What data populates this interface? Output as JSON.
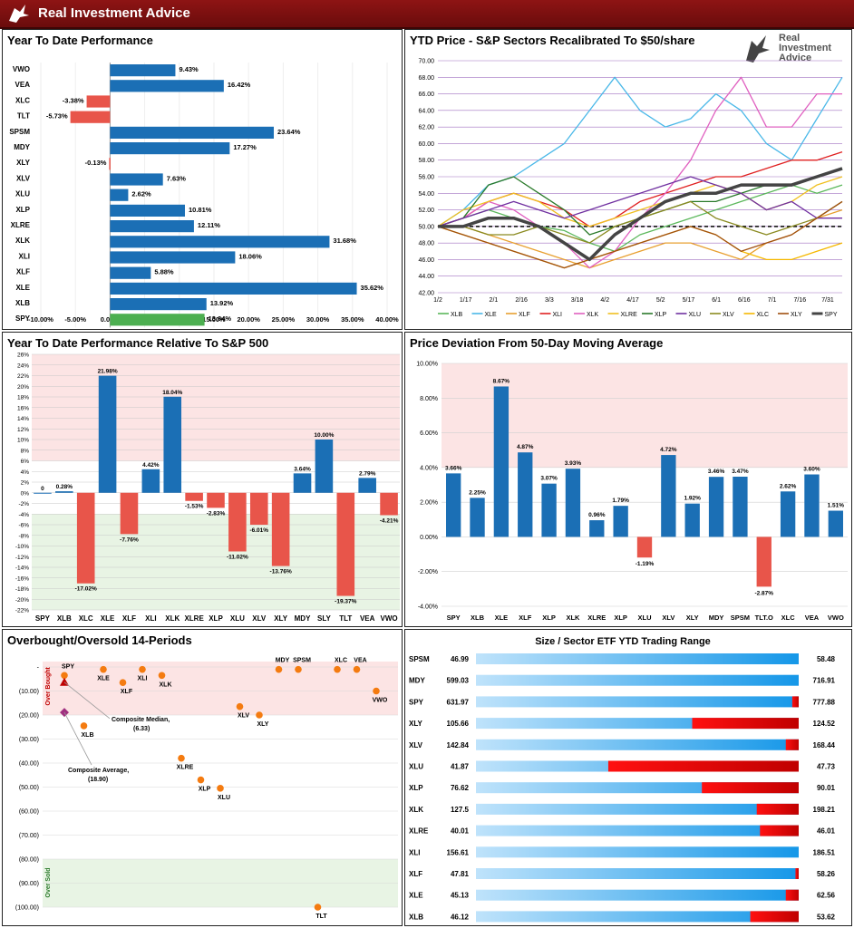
{
  "header": {
    "brand": "Real Investment Advice"
  },
  "panels": {
    "ytd": {
      "title": "Year To Date Performance"
    },
    "sectors": {
      "title": "YTD Price - S&P Sectors Recalibrated To $50/share",
      "logo_line1": "Real",
      "logo_line2": "Investment",
      "logo_line3": "Advice"
    },
    "relative": {
      "title": "Year To Date Performance Relative To S&P 500"
    },
    "deviation": {
      "title": "Price Deviation From 50-Day Moving Average"
    },
    "overbought": {
      "title": "Overbought/Oversold 14-Periods"
    },
    "range": {
      "title": "Size / Sector ETF YTD Trading Range"
    }
  },
  "colors": {
    "blue": "#1b6fb5",
    "red": "#e8554a",
    "green": "#4caf50",
    "pinkband": "#fce4e4",
    "greenband": "#e8f4e4",
    "dark_red": "#e00000",
    "light_blue": "#2da6ee"
  },
  "chart_data": [
    {
      "type": "bar",
      "orientation": "horizontal",
      "title": "Year To Date Performance",
      "categories": [
        "VWO",
        "VEA",
        "XLC",
        "TLT",
        "SPSM",
        "MDY",
        "XLY",
        "XLV",
        "XLU",
        "XLP",
        "XLRE",
        "XLK",
        "XLI",
        "XLF",
        "XLE",
        "XLB",
        "SPY"
      ],
      "values": [
        9.43,
        16.42,
        -3.38,
        -5.73,
        23.64,
        17.27,
        -0.13,
        7.63,
        2.62,
        10.81,
        12.11,
        31.68,
        18.06,
        5.88,
        35.62,
        13.92,
        13.64
      ],
      "labels": [
        "9.43%",
        "16.42%",
        "-3.38%",
        "-5.73%",
        "23.64%",
        "17.27%",
        "-0.13%",
        "7.63%",
        "2.62%",
        "10.81%",
        "12.11%",
        "31.68%",
        "18.06%",
        "5.88%",
        "35.62%",
        "13.92%",
        "13.64%"
      ],
      "xlim": [
        -10,
        40
      ],
      "xticks": [
        "-10.00%",
        "-5.00%",
        "0.00%",
        "5.00%",
        "10.00%",
        "15.00%",
        "20.00%",
        "25.00%",
        "30.00%",
        "35.00%",
        "40.00%"
      ]
    },
    {
      "type": "line",
      "title": "YTD Price - S&P Sectors Recalibrated To $50/share",
      "xticks": [
        "1/2",
        "1/17",
        "2/1",
        "2/16",
        "3/3",
        "3/18",
        "4/2",
        "4/17",
        "5/2",
        "5/17",
        "6/1",
        "6/16",
        "7/1",
        "7/16",
        "7/31"
      ],
      "ylim": [
        42,
        70
      ],
      "yticks": [
        "70.00",
        "68.00",
        "66.00",
        "64.00",
        "62.00",
        "60.00",
        "58.00",
        "56.00",
        "54.00",
        "52.00",
        "50.00",
        "48.00",
        "46.00",
        "44.00",
        "42.00"
      ],
      "baseline": 50,
      "series": [
        {
          "name": "XLB",
          "color": "#5cb85c",
          "values": [
            50,
            51,
            52,
            51,
            50,
            49.5,
            48,
            47,
            49,
            50,
            51,
            52,
            53,
            54,
            55,
            54,
            55
          ]
        },
        {
          "name": "XLE",
          "color": "#4ab8e8",
          "values": [
            50,
            52,
            55,
            56,
            58,
            60,
            64,
            68,
            64,
            62,
            63,
            66,
            64,
            60,
            58,
            63,
            68
          ]
        },
        {
          "name": "XLF",
          "color": "#e8a030",
          "values": [
            50,
            50,
            49,
            48,
            47,
            46,
            45,
            46,
            47,
            48,
            48,
            47,
            46,
            48,
            49,
            51,
            52
          ]
        },
        {
          "name": "XLI",
          "color": "#e02020",
          "values": [
            50,
            51,
            53,
            54,
            53,
            52,
            50,
            51,
            53,
            54,
            55,
            56,
            56,
            57,
            58,
            58,
            59
          ]
        },
        {
          "name": "XLK",
          "color": "#e060c0",
          "values": [
            50,
            51,
            53,
            52,
            50,
            48,
            45,
            47,
            51,
            54,
            58,
            64,
            68,
            62,
            62,
            66,
            66
          ]
        },
        {
          "name": "XLRE",
          "color": "#f0c020",
          "values": [
            50,
            52,
            53,
            54,
            53,
            51,
            50,
            51,
            52,
            53,
            54,
            55,
            54,
            52,
            53,
            55,
            56
          ]
        },
        {
          "name": "XLP",
          "color": "#2a7a2a",
          "values": [
            50,
            51,
            55,
            56,
            54,
            52,
            49,
            50,
            51,
            52,
            53,
            53,
            54,
            55,
            55,
            56,
            57
          ]
        },
        {
          "name": "XLU",
          "color": "#7030a0",
          "values": [
            50,
            51,
            52,
            53,
            52,
            51,
            52,
            53,
            54,
            55,
            56,
            55,
            54,
            52,
            53,
            51,
            51
          ]
        },
        {
          "name": "XLV",
          "color": "#8a8a20",
          "values": [
            50,
            50,
            49,
            49,
            50,
            49,
            48,
            50,
            51,
            52,
            53,
            51,
            50,
            49,
            50,
            51,
            53
          ]
        },
        {
          "name": "XLC",
          "color": "#f5b800",
          "values": [
            50,
            49,
            48,
            47,
            46,
            45,
            46,
            47,
            48,
            49,
            50,
            49,
            47,
            46,
            46,
            47,
            48
          ]
        },
        {
          "name": "XLY",
          "color": "#a05010",
          "values": [
            50,
            49,
            48,
            47,
            46,
            45,
            46,
            47,
            48,
            49,
            50,
            49,
            47,
            48,
            49,
            51,
            53
          ]
        },
        {
          "name": "SPY",
          "color": "#444444",
          "values": [
            50,
            50,
            51,
            51,
            50,
            48,
            46,
            49,
            51,
            53,
            54,
            54,
            55,
            55,
            55,
            56,
            57
          ]
        }
      ]
    },
    {
      "type": "bar",
      "title": "Year To Date Performance Relative To S&P 500",
      "categories": [
        "SPY",
        "XLB",
        "XLC",
        "XLE",
        "XLF",
        "XLI",
        "XLK",
        "XLRE",
        "XLP",
        "XLU",
        "XLV",
        "XLY",
        "MDY",
        "SLY",
        "TLT",
        "VEA",
        "VWO"
      ],
      "values": [
        0,
        0.28,
        -17.02,
        21.98,
        -7.76,
        4.42,
        18.04,
        -1.53,
        -2.83,
        -11.02,
        -6.01,
        -13.76,
        3.64,
        10.0,
        -19.37,
        2.79,
        -4.21
      ],
      "labels": [
        "0",
        "0.28%",
        "-17.02%",
        "21.98%",
        "-7.76%",
        "4.42%",
        "18.04%",
        "-1.53%",
        "-2.83%",
        "-11.02%",
        "-6.01%",
        "-13.76%",
        "3.64%",
        "10.00%",
        "-19.37%",
        "2.79%",
        "-4.21%"
      ],
      "ylim": [
        -22,
        26
      ],
      "yticks": [
        "26%",
        "24%",
        "22%",
        "20%",
        "18%",
        "16%",
        "14%",
        "12%",
        "10%",
        "8%",
        "6%",
        "4%",
        "2%",
        "0%",
        "-2%",
        "-4%",
        "-6%",
        "-8%",
        "-10%",
        "-12%",
        "-14%",
        "-16%",
        "-18%",
        "-20%",
        "-22%"
      ],
      "band_high": [
        6,
        26
      ],
      "band_low": [
        -22,
        -4
      ]
    },
    {
      "type": "bar",
      "title": "Price Deviation From 50-Day Moving Average",
      "categories": [
        "SPY",
        "XLB",
        "XLE",
        "XLF",
        "XLP",
        "XLK",
        "XLRE",
        "XLP",
        "XLU",
        "XLV",
        "XLY",
        "MDY",
        "SPSM",
        "TLT.O",
        "XLC",
        "VEA",
        "VWO"
      ],
      "values": [
        3.66,
        2.25,
        8.67,
        4.87,
        3.07,
        3.93,
        0.96,
        1.79,
        -1.19,
        4.72,
        1.92,
        3.46,
        3.47,
        -2.87,
        2.62,
        3.6,
        1.51
      ],
      "labels": [
        "3.66%",
        "2.25%",
        "8.67%",
        "4.87%",
        "3.07%",
        "3.93%",
        "0.96%",
        "1.79%",
        "-1.19%",
        "4.72%",
        "1.92%",
        "3.46%",
        "3.47%",
        "-2.87%",
        "2.62%",
        "3.60%",
        "1.51%"
      ],
      "ylim": [
        -4,
        10
      ],
      "yticks": [
        "10.00%",
        "8.00%",
        "6.00%",
        "4.00%",
        "2.00%",
        "0.00%",
        "-2.00%",
        "-4.00%"
      ],
      "band_high": [
        4,
        10
      ]
    },
    {
      "type": "scatter",
      "title": "Overbought/Oversold 14-Periods",
      "yticks": [
        "-",
        "(10.00)",
        "(20.00)",
        "(30.00)",
        "(40.00)",
        "(50.00)",
        "(60.00)",
        "(70.00)",
        "(80.00)",
        "(90.00)",
        "(100.00)"
      ],
      "ylim": [
        -100,
        0
      ],
      "band_top_label": "Over Bought",
      "band_bottom_label": "Over Sold",
      "points": [
        {
          "label": "SPY",
          "x": 1,
          "y": -3.5
        },
        {
          "label": "XLB",
          "x": 2,
          "y": -24.5
        },
        {
          "label": "XLE",
          "x": 3,
          "y": -1
        },
        {
          "label": "XLF",
          "x": 4,
          "y": -6.5
        },
        {
          "label": "XLI",
          "x": 5,
          "y": -1
        },
        {
          "label": "XLK",
          "x": 6,
          "y": -3.5
        },
        {
          "label": "XLRE",
          "x": 7,
          "y": -38
        },
        {
          "label": "XLP",
          "x": 8,
          "y": -47
        },
        {
          "label": "XLU",
          "x": 9,
          "y": -50.5
        },
        {
          "label": "XLV",
          "x": 10,
          "y": -16.5
        },
        {
          "label": "XLY",
          "x": 11,
          "y": -20
        },
        {
          "label": "MDY",
          "x": 12,
          "y": -1
        },
        {
          "label": "SPSM",
          "x": 13,
          "y": -1
        },
        {
          "label": "TLT",
          "x": 14,
          "y": -100
        },
        {
          "label": "XLC",
          "x": 15,
          "y": -1
        },
        {
          "label": "VEA",
          "x": 16,
          "y": -1
        },
        {
          "label": "VWO",
          "x": 17,
          "y": -10
        }
      ],
      "composite_median": {
        "label": "Composite Median,",
        "value_label": "(6.33)",
        "y": -6.33
      },
      "composite_average": {
        "label": "Composite Average,",
        "value_label": "(18.90)",
        "y": -18.9
      }
    },
    {
      "type": "table",
      "title": "Size / Sector ETF YTD Trading Range",
      "rows": [
        {
          "ticker": "SPSM",
          "low": "46.99",
          "high": "58.48",
          "low_v": 46.99,
          "high_v": 58.48,
          "current_frac": 1.0
        },
        {
          "ticker": "MDY",
          "low": "599.03",
          "high": "716.91",
          "low_v": 599.03,
          "high_v": 716.91,
          "current_frac": 1.0
        },
        {
          "ticker": "SPY",
          "low": "631.97",
          "high": "777.88",
          "low_v": 631.97,
          "high_v": 777.88,
          "current_frac": 0.98
        },
        {
          "ticker": "XLY",
          "low": "105.66",
          "high": "124.52",
          "low_v": 105.66,
          "high_v": 124.52,
          "current_frac": 0.67
        },
        {
          "ticker": "XLV",
          "low": "142.84",
          "high": "168.44",
          "low_v": 142.84,
          "high_v": 168.44,
          "current_frac": 0.96
        },
        {
          "ticker": "XLU",
          "low": "41.87",
          "high": "47.73",
          "low_v": 41.87,
          "high_v": 47.73,
          "current_frac": 0.41
        },
        {
          "ticker": "XLP",
          "low": "76.62",
          "high": "90.01",
          "low_v": 76.62,
          "high_v": 90.01,
          "current_frac": 0.7
        },
        {
          "ticker": "XLK",
          "low": "127.5",
          "high": "198.21",
          "low_v": 127.5,
          "high_v": 198.21,
          "current_frac": 0.87
        },
        {
          "ticker": "XLRE",
          "low": "40.01",
          "high": "46.01",
          "low_v": 40.01,
          "high_v": 46.01,
          "current_frac": 0.88
        },
        {
          "ticker": "XLI",
          "low": "156.61",
          "high": "186.51",
          "low_v": 156.61,
          "high_v": 186.51,
          "current_frac": 1.0
        },
        {
          "ticker": "XLF",
          "low": "47.81",
          "high": "58.26",
          "low_v": 47.81,
          "high_v": 58.26,
          "current_frac": 0.99
        },
        {
          "ticker": "XLE",
          "low": "45.13",
          "high": "62.56",
          "low_v": 45.13,
          "high_v": 62.56,
          "current_frac": 0.96
        },
        {
          "ticker": "XLB",
          "low": "46.12",
          "high": "53.62",
          "low_v": 46.12,
          "high_v": 53.62,
          "current_frac": 0.85
        }
      ]
    }
  ]
}
